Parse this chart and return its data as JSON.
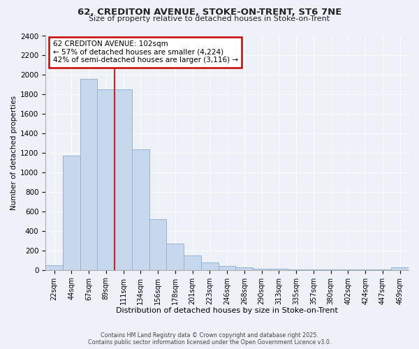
{
  "title1": "62, CREDITON AVENUE, STOKE-ON-TRENT, ST6 7NE",
  "title2": "Size of property relative to detached houses in Stoke-on-Trent",
  "xlabel": "Distribution of detached houses by size in Stoke-on-Trent",
  "ylabel": "Number of detached properties",
  "annotation_title": "62 CREDITON AVENUE: 102sqm",
  "annotation_line1": "← 57% of detached houses are smaller (4,224)",
  "annotation_line2": "42% of semi-detached houses are larger (3,116) →",
  "footer1": "Contains HM Land Registry data © Crown copyright and database right 2025.",
  "footer2": "Contains public sector information licensed under the Open Government Licence v3.0.",
  "categories": [
    "22sqm",
    "44sqm",
    "67sqm",
    "89sqm",
    "111sqm",
    "134sqm",
    "156sqm",
    "178sqm",
    "201sqm",
    "223sqm",
    "246sqm",
    "268sqm",
    "290sqm",
    "313sqm",
    "335sqm",
    "357sqm",
    "380sqm",
    "402sqm",
    "424sqm",
    "447sqm",
    "469sqm"
  ],
  "values": [
    50,
    1170,
    1960,
    1850,
    1850,
    1240,
    520,
    270,
    150,
    80,
    40,
    25,
    15,
    10,
    5,
    5,
    5,
    5,
    5,
    5,
    30
  ],
  "bar_color": "#c8d8ec",
  "bar_edge_color": "#92b4d4",
  "vline_color": "#cc2222",
  "vline_x": 3.5,
  "ylim": [
    0,
    2400
  ],
  "yticks": [
    0,
    200,
    400,
    600,
    800,
    1000,
    1200,
    1400,
    1600,
    1800,
    2000,
    2200,
    2400
  ],
  "background_color": "#eef2f8",
  "plot_bg_color": "#eef2f8",
  "grid_color": "#ffffff",
  "annotation_box_color": "#ffffff",
  "annotation_border_color": "#cc0000"
}
